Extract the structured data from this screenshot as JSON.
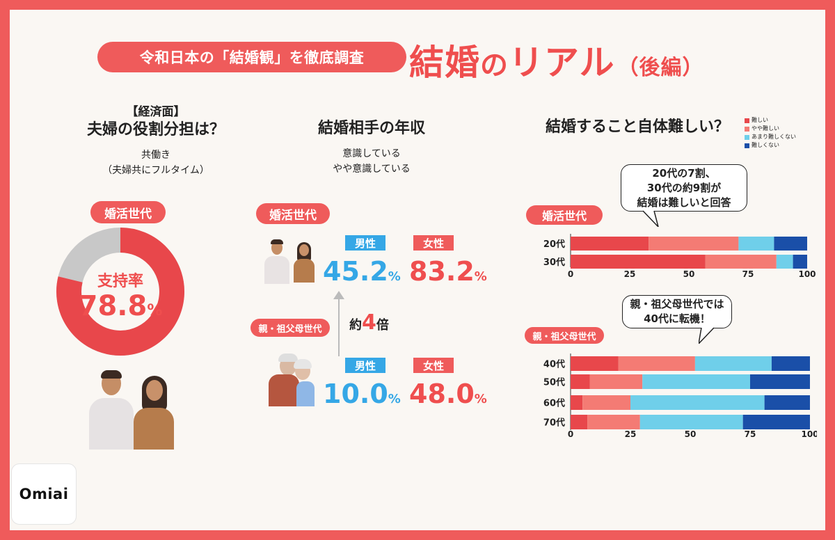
{
  "header": {
    "pill_text": "令和日本の「結婚観」を徹底調査",
    "title_part1": "結婚",
    "title_part2": "の",
    "title_part3": "リアル",
    "title_sub": "（後編）"
  },
  "col1": {
    "tag": "【経済面】",
    "question": "夫婦の役割分担は？",
    "answer_line1": "共働き",
    "answer_line2": "（夫婦共にフルタイム）",
    "group_label": "婚活世代",
    "center_label": "支持率",
    "value_text": "78.8",
    "pct": "%",
    "donut_fraction": 0.788,
    "colors": {
      "fill": "#e8474b",
      "track": "#c8c8c8"
    }
  },
  "col2": {
    "question": "結婚相手の年収",
    "answer_line1": "意識している",
    "answer_line2": "やや意識している",
    "groups": [
      {
        "label": "婚活世代",
        "male_label": "男性",
        "male_value": "45.2",
        "female_label": "女性",
        "female_value": "83.2",
        "pct": "%"
      },
      {
        "label": "親・祖父母世代",
        "male_label": "男性",
        "male_value": "10.0",
        "female_label": "女性",
        "female_value": "48.0",
        "pct": "%"
      }
    ],
    "ratio_prefix": "約",
    "ratio_num": "4",
    "ratio_suffix": "倍"
  },
  "col3": {
    "question": "結婚すること自体難しい？",
    "bubble1": [
      "20代の7割、",
      "30代の約9割が",
      "結婚は難しいと回答"
    ],
    "bubble2": [
      "親・祖父母世代では",
      "40代に転機！"
    ],
    "group1_label": "婚活世代",
    "group2_label": "親・祖父母世代"
  },
  "chart_data": [
    {
      "type": "bar",
      "orientation": "horizontal",
      "stacked": true,
      "group": "婚活世代",
      "categories": [
        "20代",
        "30代"
      ],
      "series": [
        {
          "name": "難しい",
          "values": [
            33,
            57
          ]
        },
        {
          "name": "やや難しい",
          "values": [
            38,
            30
          ]
        },
        {
          "name": "あまり難しくない",
          "values": [
            15,
            7
          ]
        },
        {
          "name": "難しくない",
          "values": [
            14,
            6
          ]
        }
      ],
      "xlim": [
        0,
        100
      ],
      "xticks": [
        "0",
        "25",
        "50",
        "75",
        "100"
      ],
      "legend_position": "top-right"
    },
    {
      "type": "bar",
      "orientation": "horizontal",
      "stacked": true,
      "group": "親・祖父母世代",
      "categories": [
        "40代",
        "50代",
        "60代",
        "70代"
      ],
      "series": [
        {
          "name": "難しい",
          "values": [
            20,
            8,
            5,
            7
          ]
        },
        {
          "name": "やや難しい",
          "values": [
            32,
            22,
            20,
            22
          ]
        },
        {
          "name": "あまり難しくない",
          "values": [
            32,
            45,
            56,
            43
          ]
        },
        {
          "name": "難しくない",
          "values": [
            16,
            25,
            19,
            28
          ]
        }
      ],
      "xlim": [
        0,
        100
      ],
      "xticks": [
        "0",
        "25",
        "50",
        "75",
        "100"
      ]
    }
  ],
  "legend": [
    {
      "name": "難しい",
      "color": "#e8474b"
    },
    {
      "name": "やや難しい",
      "color": "#f47b74"
    },
    {
      "name": "あまり難しくない",
      "color": "#6fcfea"
    },
    {
      "name": "難しくない",
      "color": "#1a4fa8"
    }
  ],
  "logo": {
    "text": "Omiai"
  }
}
